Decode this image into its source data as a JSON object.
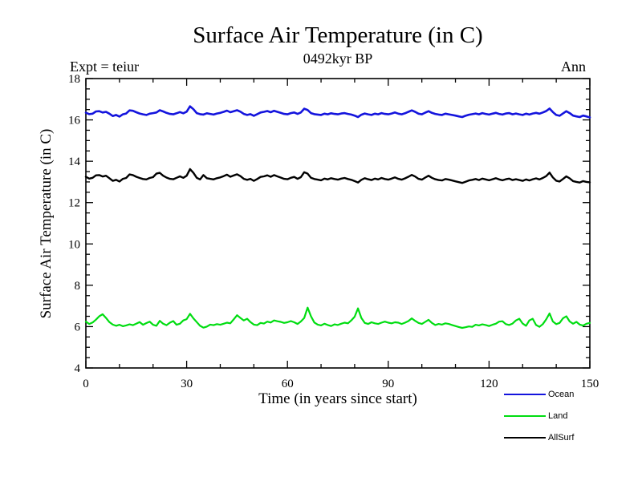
{
  "header": {
    "title": "Surface Air Temperature (in C)",
    "subtitle": "0492kyr BP",
    "experiment_label": "Expt = teiur",
    "season_label": "Ann"
  },
  "axes": {
    "x_title": "Time (in years since start)",
    "y_title": "Surface Air Temperature (in C)"
  },
  "chart_data": {
    "type": "line",
    "title": "Surface Air Temperature (in C)",
    "subtitle": "0492kyr BP",
    "xlabel": "Time (in years since start)",
    "ylabel": "Surface Air Temperature (in C)",
    "xlim": [
      0,
      150
    ],
    "ylim": [
      4,
      18
    ],
    "x_major_ticks": [
      0,
      30,
      60,
      90,
      120,
      150
    ],
    "x_minor_step": 10,
    "y_major_ticks": [
      4,
      6,
      8,
      10,
      12,
      14,
      16,
      18
    ],
    "y_minor_step": 0.5,
    "grid": false,
    "legend_position": "bottom-right",
    "x": [
      0,
      1,
      2,
      3,
      4,
      5,
      6,
      7,
      8,
      9,
      10,
      11,
      12,
      13,
      14,
      15,
      16,
      17,
      18,
      19,
      20,
      21,
      22,
      23,
      24,
      25,
      26,
      27,
      28,
      29,
      30,
      31,
      32,
      33,
      34,
      35,
      36,
      37,
      38,
      39,
      40,
      41,
      42,
      43,
      44,
      45,
      46,
      47,
      48,
      49,
      50,
      51,
      52,
      53,
      54,
      55,
      56,
      57,
      58,
      59,
      60,
      61,
      62,
      63,
      64,
      65,
      66,
      67,
      68,
      69,
      70,
      71,
      72,
      73,
      74,
      75,
      76,
      77,
      78,
      79,
      80,
      81,
      82,
      83,
      84,
      85,
      86,
      87,
      88,
      89,
      90,
      91,
      92,
      93,
      94,
      95,
      96,
      97,
      98,
      99,
      100,
      101,
      102,
      103,
      104,
      105,
      106,
      107,
      108,
      109,
      110,
      111,
      112,
      113,
      114,
      115,
      116,
      117,
      118,
      119,
      120,
      121,
      122,
      123,
      124,
      125,
      126,
      127,
      128,
      129,
      130,
      131,
      132,
      133,
      134,
      135,
      136,
      137,
      138,
      139,
      140,
      141,
      142,
      143,
      144,
      145,
      146,
      147,
      148,
      149,
      150
    ],
    "series": [
      {
        "name": "Ocean",
        "color": "#1414dd",
        "width": 2.6,
        "values": [
          16.35,
          16.28,
          16.3,
          16.41,
          16.42,
          16.36,
          16.39,
          16.3,
          16.19,
          16.24,
          16.16,
          16.27,
          16.31,
          16.46,
          16.44,
          16.37,
          16.31,
          16.27,
          16.24,
          16.3,
          16.33,
          16.36,
          16.47,
          16.41,
          16.34,
          16.29,
          16.27,
          16.32,
          16.38,
          16.32,
          16.4,
          16.66,
          16.52,
          16.33,
          16.28,
          16.26,
          16.32,
          16.29,
          16.26,
          16.31,
          16.34,
          16.39,
          16.45,
          16.37,
          16.42,
          16.47,
          16.4,
          16.29,
          16.24,
          16.28,
          16.2,
          16.28,
          16.36,
          16.39,
          16.43,
          16.37,
          16.44,
          16.39,
          16.34,
          16.29,
          16.27,
          16.33,
          16.36,
          16.29,
          16.36,
          16.54,
          16.48,
          16.33,
          16.28,
          16.26,
          16.24,
          16.3,
          16.27,
          16.32,
          16.29,
          16.27,
          16.31,
          16.33,
          16.29,
          16.26,
          16.21,
          16.14,
          16.25,
          16.31,
          16.27,
          16.24,
          16.3,
          16.27,
          16.33,
          16.29,
          16.27,
          16.31,
          16.36,
          16.3,
          16.27,
          16.32,
          16.39,
          16.46,
          16.39,
          16.3,
          16.27,
          16.35,
          16.42,
          16.34,
          16.29,
          16.26,
          16.24,
          16.3,
          16.27,
          16.24,
          16.21,
          16.17,
          16.14,
          16.2,
          16.25,
          16.28,
          16.31,
          16.27,
          16.33,
          16.29,
          16.26,
          16.3,
          16.34,
          16.29,
          16.26,
          16.31,
          16.33,
          16.27,
          16.31,
          16.27,
          16.24,
          16.3,
          16.26,
          16.31,
          16.34,
          16.3,
          16.36,
          16.43,
          16.55,
          16.38,
          16.24,
          16.2,
          16.31,
          16.42,
          16.33,
          16.21,
          16.17,
          16.14,
          16.21,
          16.17,
          16.12
        ]
      },
      {
        "name": "Land",
        "color": "#00dd11",
        "width": 2.2,
        "values": [
          6.24,
          6.13,
          6.2,
          6.34,
          6.5,
          6.6,
          6.42,
          6.22,
          6.1,
          6.04,
          6.09,
          6.02,
          6.06,
          6.11,
          6.07,
          6.14,
          6.22,
          6.09,
          6.17,
          6.24,
          6.09,
          6.04,
          6.28,
          6.14,
          6.07,
          6.19,
          6.27,
          6.09,
          6.14,
          6.3,
          6.36,
          6.62,
          6.4,
          6.22,
          6.04,
          5.95,
          6.0,
          6.1,
          6.07,
          6.12,
          6.09,
          6.14,
          6.19,
          6.16,
          6.35,
          6.55,
          6.42,
          6.3,
          6.38,
          6.22,
          6.1,
          6.07,
          6.18,
          6.15,
          6.24,
          6.2,
          6.3,
          6.26,
          6.23,
          6.18,
          6.21,
          6.27,
          6.21,
          6.13,
          6.25,
          6.42,
          6.92,
          6.5,
          6.2,
          6.1,
          6.06,
          6.14,
          6.08,
          6.03,
          6.11,
          6.08,
          6.14,
          6.19,
          6.16,
          6.3,
          6.48,
          6.88,
          6.42,
          6.18,
          6.13,
          6.21,
          6.16,
          6.13,
          6.19,
          6.24,
          6.19,
          6.16,
          6.21,
          6.19,
          6.13,
          6.19,
          6.27,
          6.4,
          6.28,
          6.18,
          6.13,
          6.23,
          6.33,
          6.18,
          6.08,
          6.13,
          6.1,
          6.16,
          6.13,
          6.08,
          6.03,
          5.98,
          5.94,
          5.97,
          6.01,
          5.99,
          6.09,
          6.06,
          6.11,
          6.08,
          6.03,
          6.09,
          6.14,
          6.24,
          6.26,
          6.12,
          6.08,
          6.15,
          6.3,
          6.38,
          6.15,
          6.04,
          6.3,
          6.38,
          6.08,
          5.99,
          6.12,
          6.35,
          6.64,
          6.25,
          6.12,
          6.18,
          6.4,
          6.5,
          6.25,
          6.14,
          6.23,
          6.1,
          6.05,
          6.14,
          6.18
        ]
      },
      {
        "name": "AllSurf",
        "color": "#000000",
        "width": 2.4,
        "values": [
          13.25,
          13.16,
          13.2,
          13.32,
          13.33,
          13.26,
          13.3,
          13.18,
          13.05,
          13.1,
          13.02,
          13.15,
          13.19,
          13.36,
          13.33,
          13.25,
          13.19,
          13.14,
          13.12,
          13.19,
          13.23,
          13.4,
          13.44,
          13.3,
          13.21,
          13.15,
          13.13,
          13.2,
          13.27,
          13.2,
          13.3,
          13.62,
          13.44,
          13.2,
          13.12,
          13.33,
          13.18,
          13.15,
          13.12,
          13.18,
          13.22,
          13.28,
          13.35,
          13.25,
          13.31,
          13.37,
          13.28,
          13.15,
          13.1,
          13.15,
          13.05,
          13.14,
          13.24,
          13.27,
          13.32,
          13.25,
          13.33,
          13.27,
          13.21,
          13.15,
          13.13,
          13.2,
          13.24,
          13.15,
          13.23,
          13.47,
          13.4,
          13.2,
          13.14,
          13.11,
          13.08,
          13.16,
          13.12,
          13.18,
          13.14,
          13.11,
          13.16,
          13.19,
          13.14,
          13.1,
          13.04,
          12.97,
          13.1,
          13.18,
          13.13,
          13.09,
          13.16,
          13.12,
          13.19,
          13.14,
          13.11,
          13.16,
          13.22,
          13.15,
          13.11,
          13.17,
          13.25,
          13.34,
          13.26,
          13.15,
          13.11,
          13.21,
          13.3,
          13.2,
          13.13,
          13.09,
          13.07,
          13.14,
          13.11,
          13.07,
          13.03,
          12.99,
          12.95,
          13.01,
          13.07,
          13.1,
          13.14,
          13.09,
          13.16,
          13.12,
          13.08,
          13.13,
          13.18,
          13.12,
          13.08,
          13.13,
          13.16,
          13.09,
          13.13,
          13.09,
          13.05,
          13.12,
          13.07,
          13.13,
          13.17,
          13.12,
          13.19,
          13.28,
          13.45,
          13.22,
          13.06,
          13.02,
          13.14,
          13.27,
          13.17,
          13.04,
          13.0,
          12.97,
          13.04,
          13.0,
          12.98
        ]
      }
    ]
  }
}
